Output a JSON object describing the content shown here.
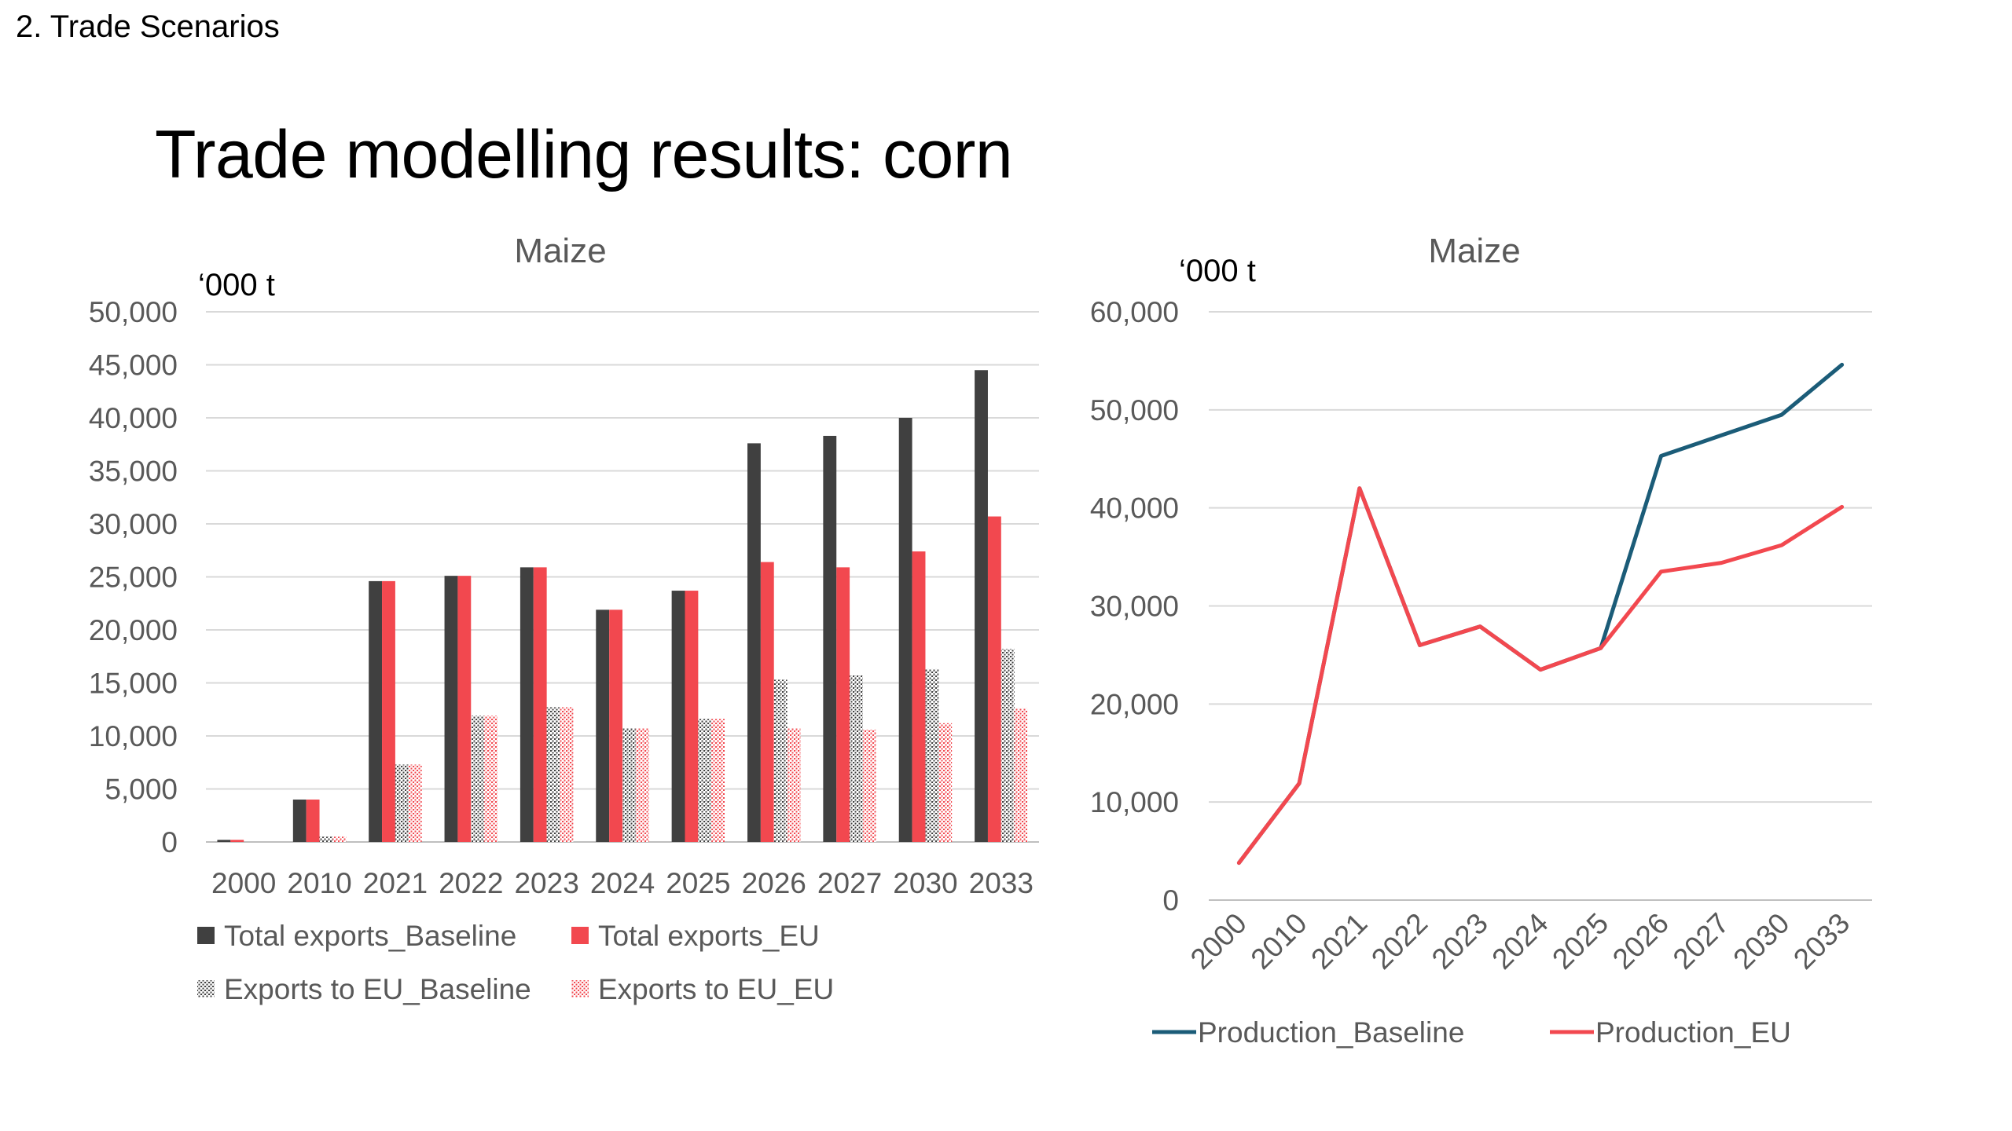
{
  "slide": {
    "section_label": "2. Trade Scenarios",
    "title": "Trade modelling results: corn"
  },
  "colors": {
    "dark": "#404040",
    "red": "#f2484f",
    "teal": "#1b5c78",
    "grid": "#d9d9d9",
    "axis_text": "#595959"
  },
  "chart_data": [
    {
      "type": "bar",
      "title": "Maize",
      "unit_label": "‘000 t",
      "categories": [
        "2000",
        "2010",
        "2021",
        "2022",
        "2023",
        "2024",
        "2025",
        "2026",
        "2027",
        "2030",
        "2033"
      ],
      "ylim": [
        0,
        50000
      ],
      "yticks": [
        "0",
        "5,000",
        "10,000",
        "15,000",
        "20,000",
        "25,000",
        "30,000",
        "35,000",
        "40,000",
        "45,000",
        "50,000"
      ],
      "grid": true,
      "legend_position": "bottom",
      "series": [
        {
          "name": "Total exports_Baseline",
          "pattern": "solid-dark",
          "values": [
            200,
            4000,
            24600,
            25100,
            25900,
            21900,
            23700,
            37600,
            38300,
            40000,
            44500
          ]
        },
        {
          "name": "Total exports_EU",
          "pattern": "solid-red",
          "values": [
            200,
            4000,
            24600,
            25100,
            25900,
            21900,
            23700,
            26400,
            25900,
            27400,
            30700
          ]
        },
        {
          "name": "Exports to EU_Baseline",
          "pattern": "hatch-dark",
          "values": [
            0,
            500,
            7300,
            11900,
            12700,
            10700,
            11600,
            15300,
            15700,
            16300,
            18200
          ]
        },
        {
          "name": "Exports to EU_EU",
          "pattern": "hatch-red",
          "values": [
            0,
            500,
            7300,
            11900,
            12700,
            10700,
            11600,
            10700,
            10600,
            11200,
            12600
          ]
        }
      ]
    },
    {
      "type": "line",
      "title": "Maize",
      "unit_label": "‘000 t",
      "categories": [
        "2000",
        "2010",
        "2021",
        "2022",
        "2023",
        "2024",
        "2025",
        "2026",
        "2027",
        "2030",
        "2033"
      ],
      "ylim": [
        0,
        60000
      ],
      "yticks": [
        "0",
        "10,000",
        "20,000",
        "30,000",
        "40,000",
        "50,000",
        "60,000"
      ],
      "grid": true,
      "legend_position": "bottom",
      "series": [
        {
          "name": "Production_Baseline",
          "color": "teal",
          "values": [
            3800,
            11900,
            42000,
            26000,
            27900,
            23500,
            25700,
            45300,
            47400,
            49500,
            54600
          ]
        },
        {
          "name": "Production_EU",
          "color": "red",
          "values": [
            3800,
            11900,
            42000,
            26000,
            27900,
            23500,
            25700,
            33500,
            34400,
            36200,
            40100
          ]
        }
      ]
    }
  ]
}
